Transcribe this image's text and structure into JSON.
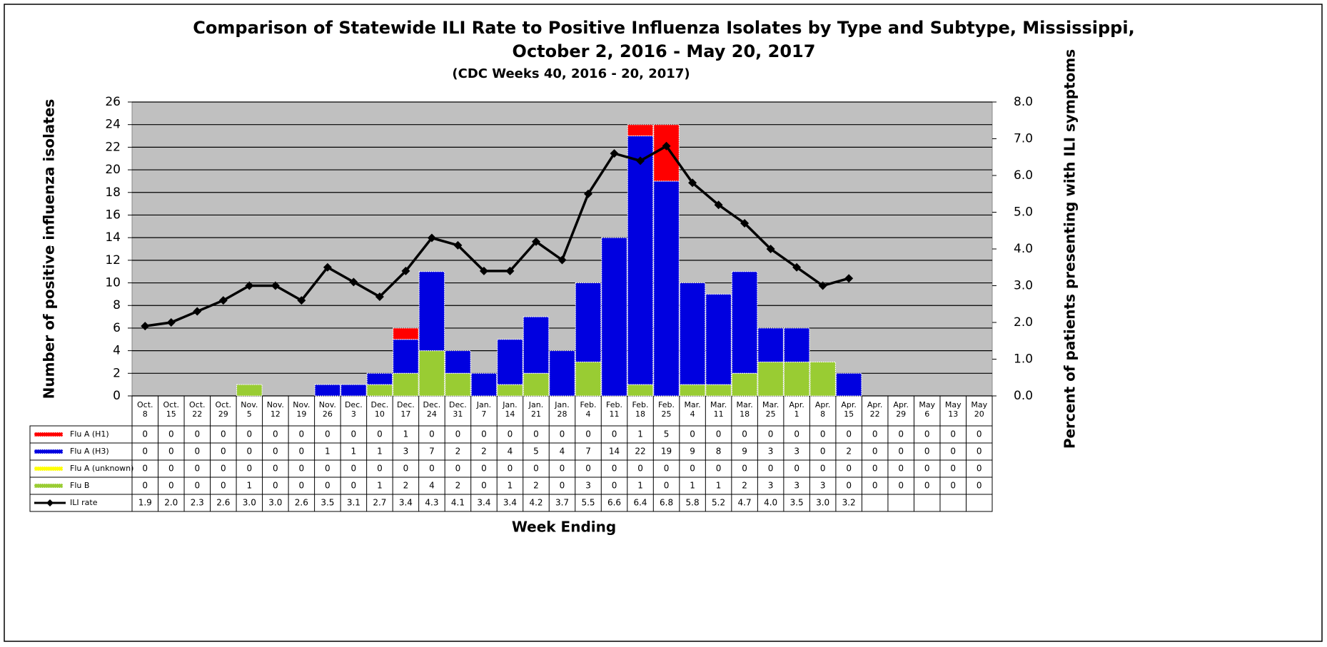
{
  "chart_data": {
    "type": "stacked-bar-line",
    "title": [
      "Comparison of Statewide ILI Rate to Positive Influenza Isolates by Type and Subtype, Mississippi,",
      "October 2, 2016 - May 20, 2017"
    ],
    "subtitle": "(CDC Weeks 40, 2016 - 20, 2017)",
    "y_label": "Number of positive influenza isolates",
    "y2_label": "Percent of patients presenting with ILI symptoms",
    "x_label": "Week Ending",
    "categories": [
      "Oct. 8",
      "Oct. 15",
      "Oct. 22",
      "Oct. 29",
      "Nov. 5",
      "Nov. 12",
      "Nov. 19",
      "Nov. 26",
      "Dec. 3",
      "Dec. 10",
      "Dec. 17",
      "Dec. 24",
      "Dec. 31",
      "Jan. 7",
      "Jan. 14",
      "Jan. 21",
      "Jan. 28",
      "Feb. 4",
      "Feb. 11",
      "Feb. 18",
      "Feb. 25",
      "Mar. 4",
      "Mar. 11",
      "Mar. 18",
      "Mar. 25",
      "Apr. 1",
      "Apr. 8",
      "Apr. 15",
      "Apr. 22",
      "Apr. 29",
      "May 6",
      "May 13",
      "May 20"
    ],
    "series": [
      {
        "name": "Flu A (H1)",
        "color": "#ff0000",
        "values": [
          0,
          0,
          0,
          0,
          0,
          0,
          0,
          0,
          0,
          0,
          1,
          0,
          0,
          0,
          0,
          0,
          0,
          0,
          0,
          1,
          5,
          0,
          0,
          0,
          0,
          0,
          0,
          0,
          0,
          0,
          0,
          0,
          0
        ]
      },
      {
        "name": "Flu A (H3)",
        "color": "#0000e0",
        "values": [
          0,
          0,
          0,
          0,
          0,
          0,
          0,
          1,
          1,
          1,
          3,
          7,
          2,
          2,
          4,
          5,
          4,
          7,
          14,
          22,
          19,
          9,
          8,
          9,
          3,
          3,
          0,
          2,
          0,
          0,
          0,
          0,
          0
        ]
      },
      {
        "name": "Flu A (unknown)",
        "color": "#ffff00",
        "values": [
          0,
          0,
          0,
          0,
          0,
          0,
          0,
          0,
          0,
          0,
          0,
          0,
          0,
          0,
          0,
          0,
          0,
          0,
          0,
          0,
          0,
          0,
          0,
          0,
          0,
          0,
          0,
          0,
          0,
          0,
          0,
          0,
          0
        ]
      },
      {
        "name": "Flu B",
        "color": "#99cc33",
        "values": [
          0,
          0,
          0,
          0,
          1,
          0,
          0,
          0,
          0,
          1,
          2,
          4,
          2,
          0,
          1,
          2,
          0,
          3,
          0,
          1,
          0,
          1,
          1,
          2,
          3,
          3,
          3,
          0,
          0,
          0,
          0,
          0,
          0
        ]
      },
      {
        "name": "ILI rate",
        "color": "#000000",
        "axis": "y2",
        "type": "line",
        "values": [
          1.9,
          2.0,
          2.3,
          2.6,
          3.0,
          3.0,
          2.6,
          3.5,
          3.1,
          2.7,
          3.4,
          4.3,
          4.1,
          3.4,
          3.4,
          4.2,
          3.7,
          5.5,
          6.6,
          6.4,
          6.8,
          5.8,
          5.2,
          4.7,
          4.0,
          3.5,
          3.0,
          3.2,
          null,
          null,
          null,
          null,
          null
        ],
        "value_labels": [
          "1.9",
          "2.0",
          "2.3",
          "2.6",
          "3.0",
          "3.0",
          "2.6",
          "3.5",
          "3.1",
          "2.7",
          "3.4",
          "4.3",
          "4.1",
          "3.4",
          "3.4",
          "4.2",
          "3.7",
          "5.5",
          "6.6",
          "6.4",
          "6.8",
          "5.8",
          "5.2",
          "4.7",
          "4.0",
          "3.5",
          "3.0",
          "3.2",
          null,
          null,
          null,
          null,
          null
        ]
      }
    ],
    "ylim": [
      0,
      26
    ],
    "yticks": [
      0,
      2,
      4,
      6,
      8,
      10,
      12,
      14,
      16,
      18,
      20,
      22,
      24,
      26
    ],
    "y2lim": [
      0,
      8
    ],
    "y2ticks": [
      {
        "value": 0,
        "label": "0.0"
      },
      {
        "value": 1,
        "label": "1.0"
      },
      {
        "value": 2,
        "label": "2.0"
      },
      {
        "value": 3,
        "label": "3.0"
      },
      {
        "value": 4,
        "label": "4.0"
      },
      {
        "value": 5,
        "label": "5.0"
      },
      {
        "value": 6,
        "label": "6.0"
      },
      {
        "value": 7,
        "label": "7.0"
      },
      {
        "value": 8,
        "label": "8.0"
      }
    ],
    "grid": true
  }
}
